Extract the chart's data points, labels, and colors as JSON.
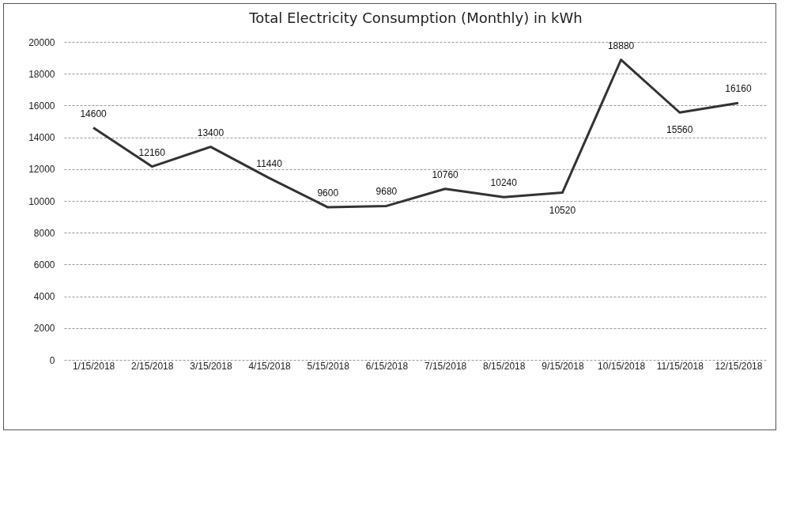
{
  "chart_data": {
    "type": "line",
    "title": "Total Electricity Consumption (Monthly) in kWh",
    "categories": [
      "1/15/2018",
      "2/15/2018",
      "3/15/2018",
      "4/15/2018",
      "5/15/2018",
      "6/15/2018",
      "7/15/2018",
      "8/15/2018",
      "9/15/2018",
      "10/15/2018",
      "11/15/2018",
      "12/15/2018"
    ],
    "series": [
      {
        "color": "#333333",
        "values": [
          14600,
          12160,
          13400,
          11440,
          9600,
          9680,
          10760,
          10240,
          10520,
          18880,
          15560,
          16160
        ]
      }
    ],
    "ylim": [
      0,
      20000
    ],
    "yticks": [
      0,
      2000,
      4000,
      6000,
      8000,
      10000,
      12000,
      14000,
      16000,
      18000,
      20000
    ],
    "grid": "y",
    "data_labels": true
  }
}
